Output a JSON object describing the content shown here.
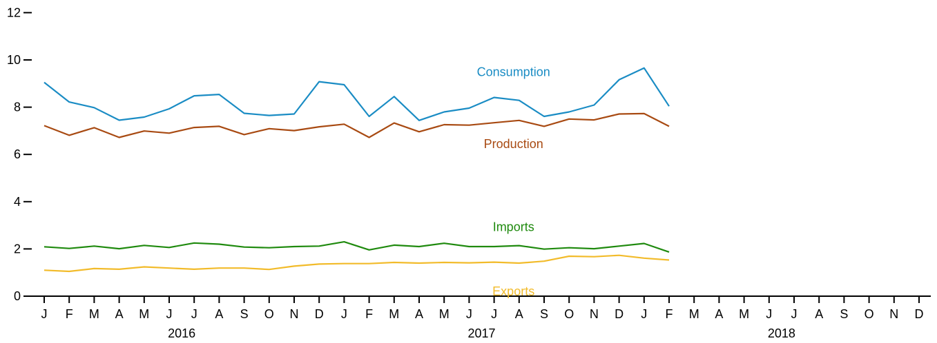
{
  "chart_data": {
    "type": "line",
    "x_month_labels": [
      "J",
      "F",
      "M",
      "A",
      "M",
      "J",
      "J",
      "A",
      "S",
      "O",
      "N",
      "D",
      "J",
      "F",
      "M",
      "A",
      "M",
      "J",
      "J",
      "A",
      "S",
      "O",
      "N",
      "D",
      "J",
      "F",
      "M",
      "A",
      "M",
      "J",
      "J",
      "A",
      "S",
      "O",
      "N",
      "D"
    ],
    "x_year_labels": [
      "2016",
      "2017",
      "2018"
    ],
    "x": [
      "2016-01",
      "2016-02",
      "2016-03",
      "2016-04",
      "2016-05",
      "2016-06",
      "2016-07",
      "2016-08",
      "2016-09",
      "2016-10",
      "2016-11",
      "2016-12",
      "2017-01",
      "2017-02",
      "2017-03",
      "2017-04",
      "2017-05",
      "2017-06",
      "2017-07",
      "2017-08",
      "2017-09",
      "2017-10",
      "2017-11",
      "2017-12",
      "2018-01",
      "2018-02"
    ],
    "xlim": [
      "2016-01",
      "2018-12"
    ],
    "ylim": [
      0,
      12
    ],
    "yticks": [
      0,
      2,
      4,
      6,
      8,
      10,
      12
    ],
    "series": [
      {
        "name": "Consumption",
        "color": "#1a8cc4",
        "values": [
          9.05,
          8.22,
          7.98,
          7.45,
          7.58,
          7.93,
          8.48,
          8.54,
          7.74,
          7.65,
          7.71,
          9.08,
          8.95,
          7.61,
          8.45,
          7.44,
          7.8,
          7.96,
          8.41,
          8.29,
          7.61,
          7.8,
          8.09,
          9.16,
          9.66,
          8.04
        ]
      },
      {
        "name": "Production",
        "color": "#a84a12",
        "values": [
          7.22,
          6.81,
          7.13,
          6.72,
          6.99,
          6.9,
          7.14,
          7.19,
          6.84,
          7.09,
          7.01,
          7.17,
          7.28,
          6.72,
          7.33,
          6.96,
          7.26,
          7.24,
          7.34,
          7.44,
          7.19,
          7.5,
          7.46,
          7.71,
          7.73,
          7.19
        ]
      },
      {
        "name": "Imports",
        "color": "#1f8a0e",
        "values": [
          2.09,
          2.02,
          2.12,
          2.01,
          2.15,
          2.06,
          2.25,
          2.2,
          2.08,
          2.05,
          2.1,
          2.12,
          2.3,
          1.96,
          2.16,
          2.1,
          2.24,
          2.1,
          2.1,
          2.14,
          1.99,
          2.05,
          2.01,
          2.12,
          2.23,
          1.87
        ]
      },
      {
        "name": "Exports",
        "color": "#f2bb2a",
        "values": [
          1.1,
          1.05,
          1.17,
          1.14,
          1.24,
          1.19,
          1.14,
          1.19,
          1.19,
          1.13,
          1.27,
          1.36,
          1.38,
          1.38,
          1.43,
          1.4,
          1.43,
          1.41,
          1.44,
          1.4,
          1.48,
          1.69,
          1.67,
          1.73,
          1.61,
          1.53
        ]
      }
    ],
    "grid": false,
    "legend": "inline labels"
  }
}
